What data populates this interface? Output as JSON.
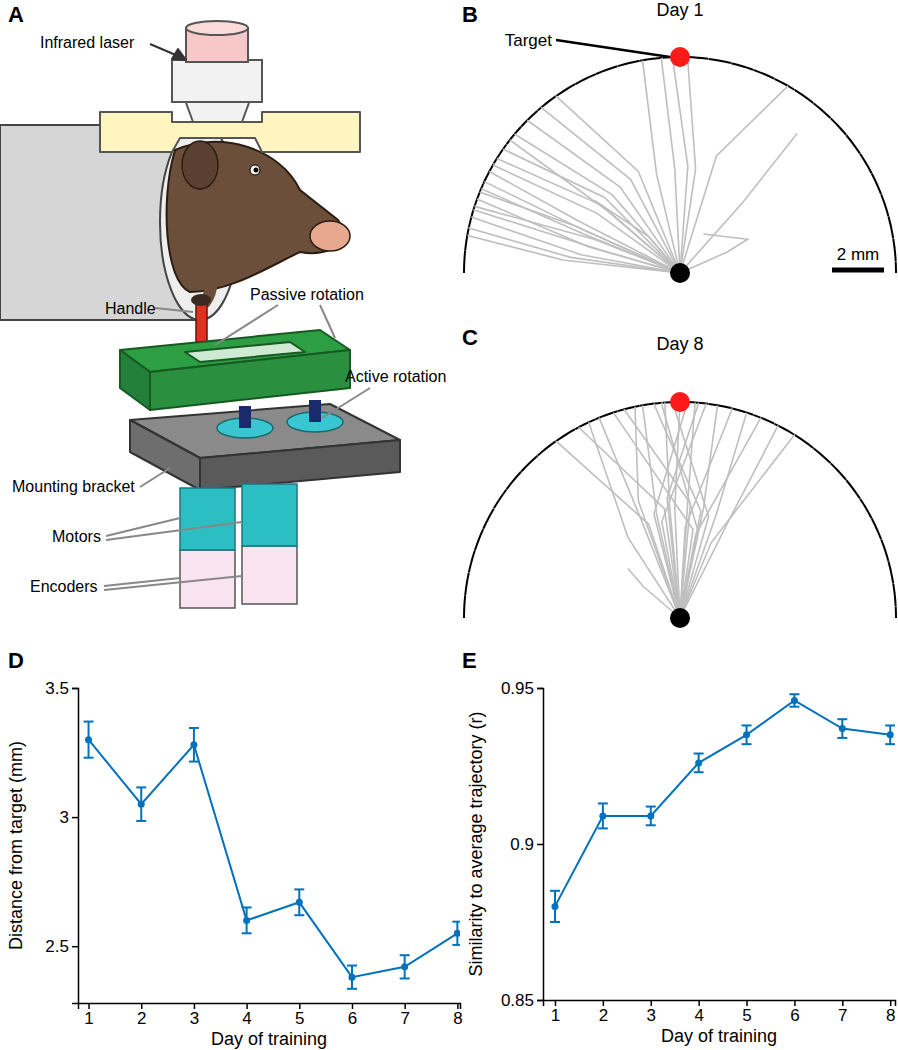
{
  "panel_labels": [
    "A",
    "B",
    "C",
    "D",
    "E"
  ],
  "diagram": {
    "labels": [
      "Infrared laser",
      "Handle",
      "Passive rotation",
      "Active rotation",
      "Mounting bracket",
      "Motors",
      "Encoders"
    ]
  },
  "chart_data": [
    {
      "type": "line",
      "title": "Day 1",
      "annotation": "Target",
      "color": "#bfbfbf",
      "tick_labels": false,
      "radius": 8.3,
      "target": [
        0,
        8.3
      ],
      "origin": [
        0,
        0
      ],
      "scale_bar": {
        "value": 2,
        "label": "2 mm"
      },
      "series": [
        {
          "x": [
            0,
            -0.2,
            -0.72
          ],
          "values": [
            0,
            4.0,
            8.27
          ]
        },
        {
          "x": [
            0,
            -0.9,
            -1.44
          ],
          "values": [
            0,
            3.8,
            8.17
          ]
        },
        {
          "x": [
            0,
            0.3,
            -0.29
          ],
          "values": [
            0,
            4.1,
            8.29
          ]
        },
        {
          "x": [
            0,
            0.6,
            0.29
          ],
          "values": [
            0,
            4.0,
            8.29
          ]
        },
        {
          "x": [
            0,
            -3.2,
            -7.19
          ],
          "values": [
            0,
            2.3,
            4.15
          ]
        },
        {
          "x": [
            0,
            -3.6,
            -7.52
          ],
          "values": [
            0,
            1.6,
            3.51
          ]
        },
        {
          "x": [
            0,
            -3.5,
            -7.8
          ],
          "values": [
            0,
            1.0,
            2.84
          ]
        },
        {
          "x": [
            0,
            -4.0,
            -7.7
          ],
          "values": [
            0,
            1.8,
            3.11
          ]
        },
        {
          "x": [
            0,
            -3.8,
            -8.02
          ],
          "values": [
            0,
            0.7,
            2.15
          ]
        },
        {
          "x": [
            0,
            -3.3,
            -7.89
          ],
          "values": [
            0,
            1.3,
            2.56
          ]
        },
        {
          "x": [
            0,
            -3.0,
            -7.04
          ],
          "values": [
            0,
            2.6,
            4.4
          ]
        },
        {
          "x": [
            0,
            -2.9,
            -6.8
          ],
          "values": [
            0,
            2.9,
            4.76
          ]
        },
        {
          "x": [
            0,
            -2.6,
            -6.36
          ],
          "values": [
            0,
            3.0,
            5.34
          ]
        },
        {
          "x": [
            0,
            -3.9,
            -7.33
          ],
          "values": [
            0,
            2.0,
            3.9
          ]
        },
        {
          "x": [
            0,
            -4.2,
            -8.12
          ],
          "values": [
            0,
            0.6,
            1.73
          ]
        },
        {
          "x": [
            0,
            -4.5,
            -8.17
          ],
          "values": [
            0,
            0.5,
            1.44
          ]
        },
        {
          "x": [
            0,
            -2.3,
            -5.87
          ],
          "values": [
            0,
            3.3,
            5.87
          ]
        },
        {
          "x": [
            0,
            -1.9,
            -5.34
          ],
          "values": [
            0,
            3.6,
            6.36
          ]
        },
        {
          "x": [
            0,
            -1.6,
            -4.76
          ],
          "values": [
            0,
            3.9,
            6.8
          ]
        },
        {
          "x": [
            0,
            -2.8,
            -6.54
          ],
          "values": [
            0,
            2.4,
            5.11
          ]
        },
        {
          "x": [
            0,
            -3.7,
            -7.64
          ],
          "values": [
            0,
            1.5,
            3.24
          ]
        },
        {
          "x": [
            0,
            -3.1,
            -7.94
          ],
          "values": [
            0,
            0.9,
            2.43
          ]
        },
        {
          "x": [
            0,
            1.4,
            4.15
          ],
          "values": [
            0,
            4.5,
            7.19
          ]
        },
        {
          "x": [
            0,
            2.4,
            4.5
          ],
          "values": [
            0,
            2.7,
            5.36
          ]
        },
        {
          "x": [
            0,
            1.8,
            2.6,
            0.9
          ],
          "values": [
            0,
            0.8,
            1.3,
            1.5
          ]
        },
        {
          "x": [
            0,
            -1.2,
            -3.3
          ],
          "values": [
            0,
            1.4,
            2.8
          ]
        }
      ]
    },
    {
      "type": "line",
      "title": "Day 8",
      "color": "#bfbfbf",
      "tick_labels": false,
      "radius": 8.3,
      "target": [
        0,
        8.3
      ],
      "origin": [
        0,
        0
      ],
      "series": [
        {
          "x": [
            0,
            -1.2,
            -4.76
          ],
          "values": [
            0,
            3.6,
            6.8
          ]
        },
        {
          "x": [
            0,
            -0.6,
            -3.9
          ],
          "values": [
            0,
            4.2,
            7.33
          ]
        },
        {
          "x": [
            0,
            -1.5,
            -3.11
          ],
          "values": [
            0,
            3.8,
            7.7
          ]
        },
        {
          "x": [
            0,
            0.4,
            -2.15
          ],
          "values": [
            0,
            4.4,
            8.02
          ]
        },
        {
          "x": [
            0,
            -0.9,
            -1.44
          ],
          "values": [
            0,
            4.0,
            8.17
          ]
        },
        {
          "x": [
            0,
            0.8,
            -1.01
          ],
          "values": [
            0,
            4.1,
            8.24
          ]
        },
        {
          "x": [
            0,
            -0.4,
            -0.58
          ],
          "values": [
            0,
            4.3,
            8.28
          ]
        },
        {
          "x": [
            0,
            1.1,
            -0.29
          ],
          "values": [
            0,
            3.9,
            8.29
          ]
        },
        {
          "x": [
            0,
            -0.2,
            0
          ],
          "values": [
            0,
            4.2,
            8.3
          ]
        },
        {
          "x": [
            0,
            -1.0,
            0.29
          ],
          "values": [
            0,
            4.0,
            8.29
          ]
        },
        {
          "x": [
            0,
            0.3,
            0.58
          ],
          "values": [
            0,
            4.5,
            8.28
          ]
        },
        {
          "x": [
            0,
            -0.7,
            1.01
          ],
          "values": [
            0,
            3.7,
            8.24
          ]
        },
        {
          "x": [
            0,
            0.9,
            1.44
          ],
          "values": [
            0,
            4.2,
            8.17
          ]
        },
        {
          "x": [
            0,
            0.2,
            2.01
          ],
          "values": [
            0,
            3.5,
            8.05
          ]
        },
        {
          "x": [
            0,
            1.4,
            2.56
          ],
          "values": [
            0,
            4.0,
            7.89
          ]
        },
        {
          "x": [
            0,
            0.6,
            3.11
          ],
          "values": [
            0,
            3.2,
            7.7
          ]
        },
        {
          "x": [
            0,
            1.8,
            3.77
          ],
          "values": [
            0,
            3.6,
            7.4
          ]
        },
        {
          "x": [
            0,
            1.2,
            4.4
          ],
          "values": [
            0,
            2.9,
            7.04
          ]
        },
        {
          "x": [
            0,
            -1.6,
            -1.73
          ],
          "values": [
            0,
            4.5,
            8.12
          ]
        },
        {
          "x": [
            0,
            0.5,
            -2.56
          ],
          "values": [
            0,
            3.4,
            7.89
          ]
        },
        {
          "x": [
            0,
            -0.5,
            0.72
          ],
          "values": [
            0,
            4.6,
            8.27
          ]
        },
        {
          "x": [
            0,
            0.7,
            -0.72
          ],
          "values": [
            0,
            3.3,
            8.27
          ]
        },
        {
          "x": [
            0,
            -2.0,
            -3.51
          ],
          "values": [
            0,
            3.1,
            7.52
          ]
        },
        {
          "x": [
            0,
            -1.4,
            -2.0
          ],
          "values": [
            0,
            1.2,
            1.9
          ]
        }
      ]
    },
    {
      "type": "line",
      "x": [
        1,
        2,
        3,
        4,
        5,
        6,
        7,
        8
      ],
      "values": [
        3.3,
        3.05,
        3.28,
        2.6,
        2.67,
        2.38,
        2.42,
        2.55
      ],
      "errors": [
        0.07,
        0.065,
        0.065,
        0.05,
        0.05,
        0.045,
        0.045,
        0.045
      ],
      "color": "#0072bd",
      "marker": "o",
      "x_label": "Day of training",
      "y_label": "Distance from target (mm)",
      "xlim": [
        0.8,
        8.05
      ],
      "ylim": [
        2.28,
        3.5
      ],
      "xticks": [
        1,
        2,
        3,
        4,
        5,
        6,
        7,
        8
      ],
      "yticks": [
        2.5,
        3,
        3.5
      ]
    },
    {
      "type": "line",
      "x": [
        1,
        2,
        3,
        4,
        5,
        6,
        7,
        8
      ],
      "values": [
        0.88,
        0.909,
        0.909,
        0.926,
        0.935,
        0.946,
        0.937,
        0.935
      ],
      "errors": [
        0.005,
        0.004,
        0.003,
        0.003,
        0.003,
        0.002,
        0.003,
        0.003
      ],
      "color": "#0072bd",
      "marker": "o",
      "x_label": "Day of training",
      "y_label": "Similarity to average trajectory (r)",
      "xlim": [
        0.75,
        8.1
      ],
      "ylim": [
        0.85,
        0.95
      ],
      "xticks": [
        1,
        2,
        3,
        4,
        5,
        6,
        7,
        8
      ],
      "yticks": [
        0.85,
        0.9,
        0.95
      ]
    }
  ]
}
